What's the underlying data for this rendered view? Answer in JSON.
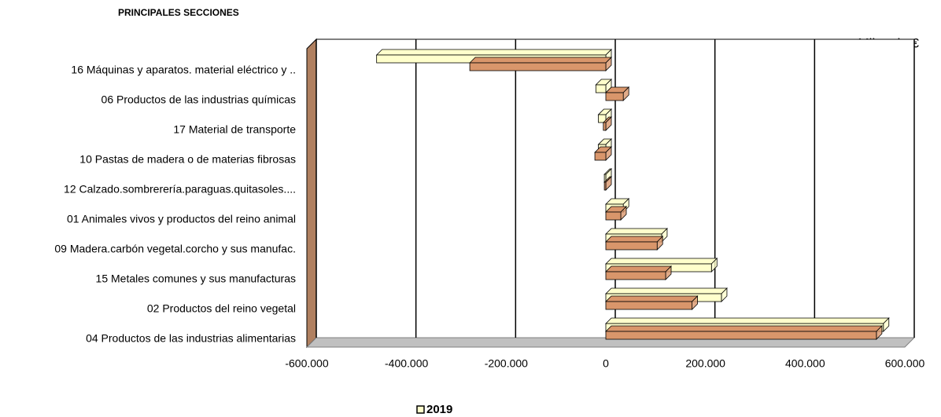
{
  "chart_data": {
    "type": "hbar3d",
    "title": "PRINCIPALES SECCIONES",
    "annotation": "Miles de €",
    "categories": [
      "16 Máquinas y aparatos. material eléctrico y ..",
      "06 Productos de las industrias químicas",
      "17 Material de transporte",
      "10 Pastas de madera o de materias fibrosas",
      "12 Calzado.sombrerería.paraguas.quitasoles....",
      "01 Animales vivos y productos del reino animal",
      "09 Madera.carbón vegetal.corcho y sus manufac.",
      "15 Metales comunes y sus manufacturas",
      "02 Productos del reino vegetal",
      "04 Productos de las industrias alimentarias"
    ],
    "series": [
      {
        "name": "2019",
        "color": "#ffffcc",
        "values": [
          -460000,
          -20000,
          -15000,
          -15000,
          -3000,
          35000,
          112000,
          212000,
          232000,
          557000
        ]
      },
      {
        "color": "#d9966b",
        "values": [
          -273000,
          35000,
          -5000,
          -22000,
          -3000,
          30000,
          103000,
          120000,
          173000,
          543000
        ]
      }
    ],
    "xlim": [
      -600000,
      600000
    ],
    "xticks": [
      {
        "value": -600000,
        "label": "-600.000"
      },
      {
        "value": -400000,
        "label": "-400.000"
      },
      {
        "value": -200000,
        "label": "-200.000"
      },
      0,
      {
        "value": 200000,
        "label": "200.000"
      },
      {
        "value": 400000,
        "label": "400.000"
      },
      {
        "value": 600000,
        "label": "600.000"
      }
    ],
    "grid": true
  }
}
